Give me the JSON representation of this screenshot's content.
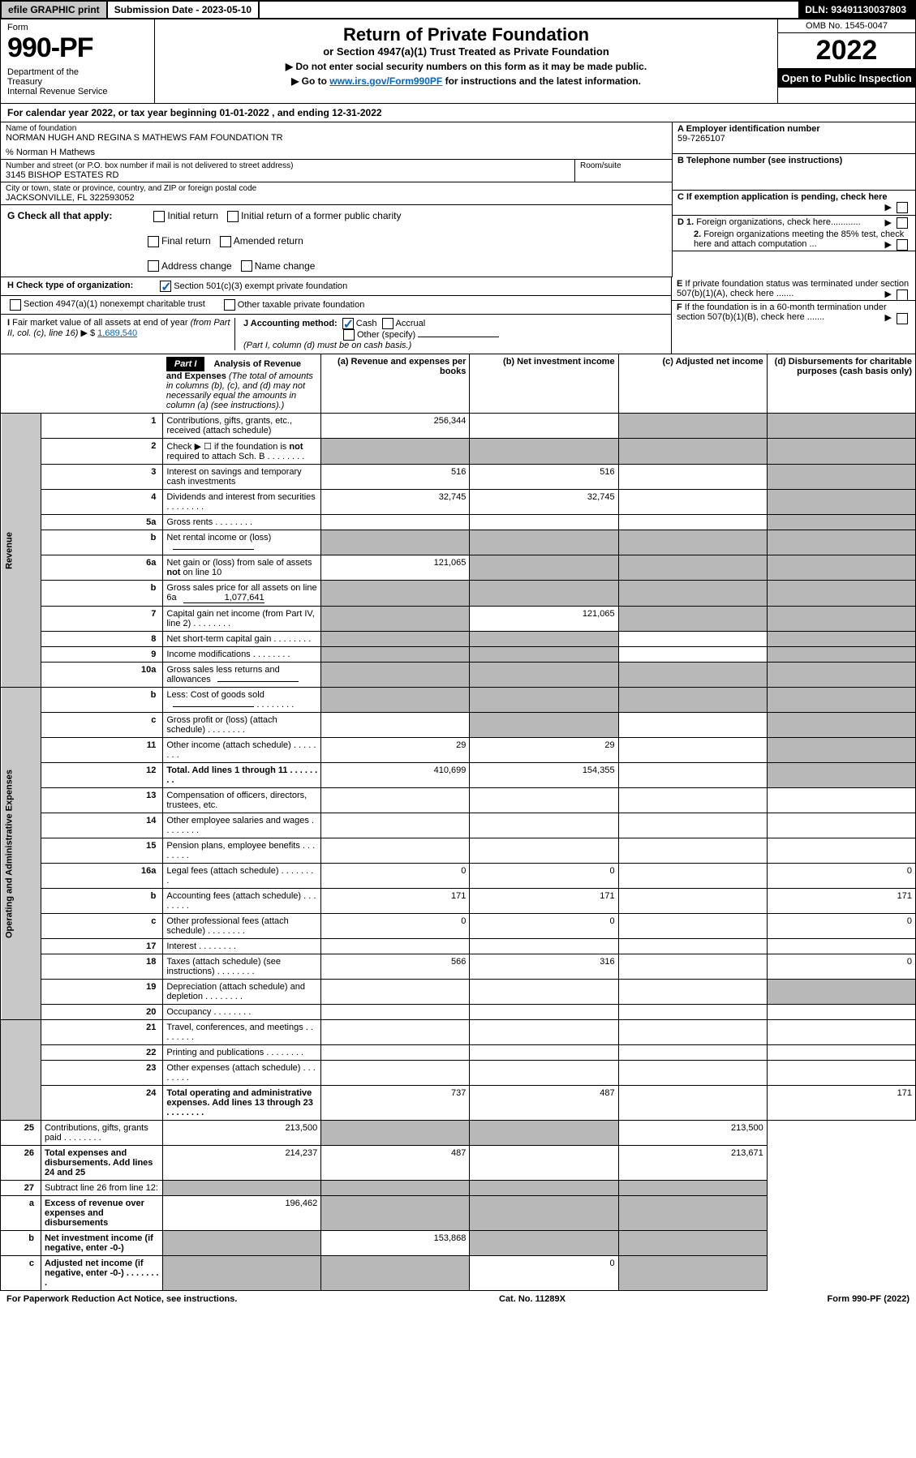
{
  "top": {
    "efile": "efile GRAPHIC print",
    "sub_label": "Submission Date - 2023-05-10",
    "dln": "DLN: 93491130037803"
  },
  "header": {
    "form_word": "Form",
    "form_num": "990-PF",
    "dept": "Department of the Treasury\nInternal Revenue Service",
    "title": "Return of Private Foundation",
    "subtitle": "or Section 4947(a)(1) Trust Treated as Private Foundation",
    "note1": "▶ Do not enter social security numbers on this form as it may be made public.",
    "note2_pre": "▶ Go to ",
    "note2_link": "www.irs.gov/Form990PF",
    "note2_post": " for instructions and the latest information.",
    "omb": "OMB No. 1545-0047",
    "year": "2022",
    "open": "Open to Public Inspection"
  },
  "calyear": "For calendar year 2022, or tax year beginning 01-01-2022                      , and ending 12-31-2022",
  "name_block": {
    "lbl": "Name of foundation",
    "val": "NORMAN HUGH AND REGINA S MATHEWS FAM FOUNDATION TR",
    "care": "% Norman H Mathews",
    "addr_lbl": "Number and street (or P.O. box number if mail is not delivered to street address)",
    "addr": "3145 BISHOP ESTATES RD",
    "room_lbl": "Room/suite",
    "city_lbl": "City or town, state or province, country, and ZIP or foreign postal code",
    "city": "JACKSONVILLE, FL  322593052"
  },
  "right_block": {
    "a_lbl": "A Employer identification number",
    "a_val": "59-7265107",
    "b_lbl": "B Telephone number (see instructions)",
    "c_lbl": "C If exemption application is pending, check here",
    "d1": "D 1. Foreign organizations, check here............",
    "d2": "2. Foreign organizations meeting the 85% test, check here and attach computation ...",
    "e": "E  If private foundation status was terminated under section 507(b)(1)(A), check here .......",
    "f": "F  If the foundation is in a 60-month termination under section 507(b)(1)(B), check here .......",
    "arrow": "▶"
  },
  "g": {
    "lbl": "G Check all that apply:",
    "opts": [
      "Initial return",
      "Initial return of a former public charity",
      "Final return",
      "Amended return",
      "Address change",
      "Name change"
    ]
  },
  "h": {
    "lbl": "H Check type of organization:",
    "opt1": "Section 501(c)(3) exempt private foundation",
    "opt2": "Section 4947(a)(1) nonexempt charitable trust",
    "opt3": "Other taxable private foundation"
  },
  "i": {
    "lbl": "I Fair market value of all assets at end of year (from Part II, col. (c), line 16) ▶ $",
    "val": "1,689,540"
  },
  "j": {
    "lbl": "J Accounting method:",
    "cash": "Cash",
    "accrual": "Accrual",
    "other": "Other (specify)",
    "note": "(Part I, column (d) must be on cash basis.)"
  },
  "part1": {
    "label": "Part I",
    "title": "Analysis of Revenue and Expenses",
    "title_note": "(The total of amounts in columns (b), (c), and (d) may not necessarily equal the amounts in column (a) (see instructions).)",
    "cols": {
      "a": "(a) Revenue and expenses per books",
      "b": "(b) Net investment income",
      "c": "(c) Adjusted net income",
      "d": "(d) Disbursements for charitable purposes (cash basis only)"
    }
  },
  "side_labels": {
    "rev": "Revenue",
    "exp": "Operating and Administrative Expenses"
  },
  "rows": [
    {
      "n": "1",
      "d": "Contributions, gifts, grants, etc., received (attach schedule)",
      "a": "256,344",
      "b": "",
      "c": "g",
      "dd": "g"
    },
    {
      "n": "2",
      "d": "Check ▶ ☐ if the foundation is not required to attach Sch. B",
      "dots": true,
      "a": "g",
      "b": "g",
      "c": "g",
      "dd": "g"
    },
    {
      "n": "3",
      "d": "Interest on savings and temporary cash investments",
      "a": "516",
      "b": "516",
      "c": "",
      "dd": "g"
    },
    {
      "n": "4",
      "d": "Dividends and interest from securities",
      "dots": true,
      "a": "32,745",
      "b": "32,745",
      "c": "",
      "dd": "g"
    },
    {
      "n": "5a",
      "d": "Gross rents",
      "dots": true,
      "a": "",
      "b": "",
      "c": "",
      "dd": "g"
    },
    {
      "n": "b",
      "d": "Net rental income or (loss)",
      "inline": true,
      "a": "g",
      "b": "g",
      "c": "g",
      "dd": "g"
    },
    {
      "n": "6a",
      "d": "Net gain or (loss) from sale of assets not on line 10",
      "a": "121,065",
      "b": "g",
      "c": "g",
      "dd": "g"
    },
    {
      "n": "b",
      "d": "Gross sales price for all assets on line 6a",
      "inline": true,
      "inline_val": "1,077,641",
      "a": "g",
      "b": "g",
      "c": "g",
      "dd": "g"
    },
    {
      "n": "7",
      "d": "Capital gain net income (from Part IV, line 2)",
      "dots": true,
      "a": "g",
      "b": "121,065",
      "c": "g",
      "dd": "g"
    },
    {
      "n": "8",
      "d": "Net short-term capital gain",
      "dots": true,
      "a": "g",
      "b": "g",
      "c": "",
      "dd": "g"
    },
    {
      "n": "9",
      "d": "Income modifications",
      "dots": true,
      "a": "g",
      "b": "g",
      "c": "",
      "dd": "g"
    },
    {
      "n": "10a",
      "d": "Gross sales less returns and allowances",
      "inline": true,
      "a": "g",
      "b": "g",
      "c": "g",
      "dd": "g"
    },
    {
      "n": "b",
      "d": "Less: Cost of goods sold",
      "dots": true,
      "inline": true,
      "a": "g",
      "b": "g",
      "c": "g",
      "dd": "g"
    },
    {
      "n": "c",
      "d": "Gross profit or (loss) (attach schedule)",
      "dots": true,
      "a": "",
      "b": "g",
      "c": "",
      "dd": "g"
    },
    {
      "n": "11",
      "d": "Other income (attach schedule)",
      "dots": true,
      "a": "29",
      "b": "29",
      "c": "",
      "dd": "g"
    },
    {
      "n": "12",
      "d": "Total. Add lines 1 through 11",
      "dots": true,
      "bold": true,
      "a": "410,699",
      "b": "154,355",
      "c": "",
      "dd": "g"
    },
    {
      "n": "13",
      "d": "Compensation of officers, directors, trustees, etc.",
      "a": "",
      "b": "",
      "c": "",
      "dd": ""
    },
    {
      "n": "14",
      "d": "Other employee salaries and wages",
      "dots": true,
      "a": "",
      "b": "",
      "c": "",
      "dd": ""
    },
    {
      "n": "15",
      "d": "Pension plans, employee benefits",
      "dots": true,
      "a": "",
      "b": "",
      "c": "",
      "dd": ""
    },
    {
      "n": "16a",
      "d": "Legal fees (attach schedule)",
      "dots": true,
      "a": "0",
      "b": "0",
      "c": "",
      "dd": "0"
    },
    {
      "n": "b",
      "d": "Accounting fees (attach schedule)",
      "dots": true,
      "a": "171",
      "b": "171",
      "c": "",
      "dd": "171"
    },
    {
      "n": "c",
      "d": "Other professional fees (attach schedule)",
      "dots": true,
      "a": "0",
      "b": "0",
      "c": "",
      "dd": "0"
    },
    {
      "n": "17",
      "d": "Interest",
      "dots": true,
      "a": "",
      "b": "",
      "c": "",
      "dd": ""
    },
    {
      "n": "18",
      "d": "Taxes (attach schedule) (see instructions)",
      "dots": true,
      "a": "566",
      "b": "316",
      "c": "",
      "dd": "0"
    },
    {
      "n": "19",
      "d": "Depreciation (attach schedule) and depletion",
      "dots": true,
      "a": "",
      "b": "",
      "c": "",
      "dd": "g"
    },
    {
      "n": "20",
      "d": "Occupancy",
      "dots": true,
      "a": "",
      "b": "",
      "c": "",
      "dd": ""
    },
    {
      "n": "21",
      "d": "Travel, conferences, and meetings",
      "dots": true,
      "a": "",
      "b": "",
      "c": "",
      "dd": ""
    },
    {
      "n": "22",
      "d": "Printing and publications",
      "dots": true,
      "a": "",
      "b": "",
      "c": "",
      "dd": ""
    },
    {
      "n": "23",
      "d": "Other expenses (attach schedule)",
      "dots": true,
      "a": "",
      "b": "",
      "c": "",
      "dd": ""
    },
    {
      "n": "24",
      "d": "Total operating and administrative expenses. Add lines 13 through 23",
      "dots": true,
      "bold": true,
      "a": "737",
      "b": "487",
      "c": "",
      "dd": "171"
    },
    {
      "n": "25",
      "d": "Contributions, gifts, grants paid",
      "dots": true,
      "a": "213,500",
      "b": "g",
      "c": "g",
      "dd": "213,500"
    },
    {
      "n": "26",
      "d": "Total expenses and disbursements. Add lines 24 and 25",
      "bold": true,
      "a": "214,237",
      "b": "487",
      "c": "",
      "dd": "213,671"
    },
    {
      "n": "27",
      "d": "Subtract line 26 from line 12:",
      "a": "g",
      "b": "g",
      "c": "g",
      "dd": "g"
    },
    {
      "n": "a",
      "d": "Excess of revenue over expenses and disbursements",
      "bold": true,
      "a": "196,462",
      "b": "g",
      "c": "g",
      "dd": "g"
    },
    {
      "n": "b",
      "d": "Net investment income (if negative, enter -0-)",
      "bold": true,
      "a": "g",
      "b": "153,868",
      "c": "g",
      "dd": "g"
    },
    {
      "n": "c",
      "d": "Adjusted net income (if negative, enter -0-)",
      "dots": true,
      "bold": true,
      "a": "g",
      "b": "g",
      "c": "0",
      "dd": "g"
    }
  ],
  "footer": {
    "left": "For Paperwork Reduction Act Notice, see instructions.",
    "mid": "Cat. No. 11289X",
    "right": "Form 990-PF (2022)"
  }
}
